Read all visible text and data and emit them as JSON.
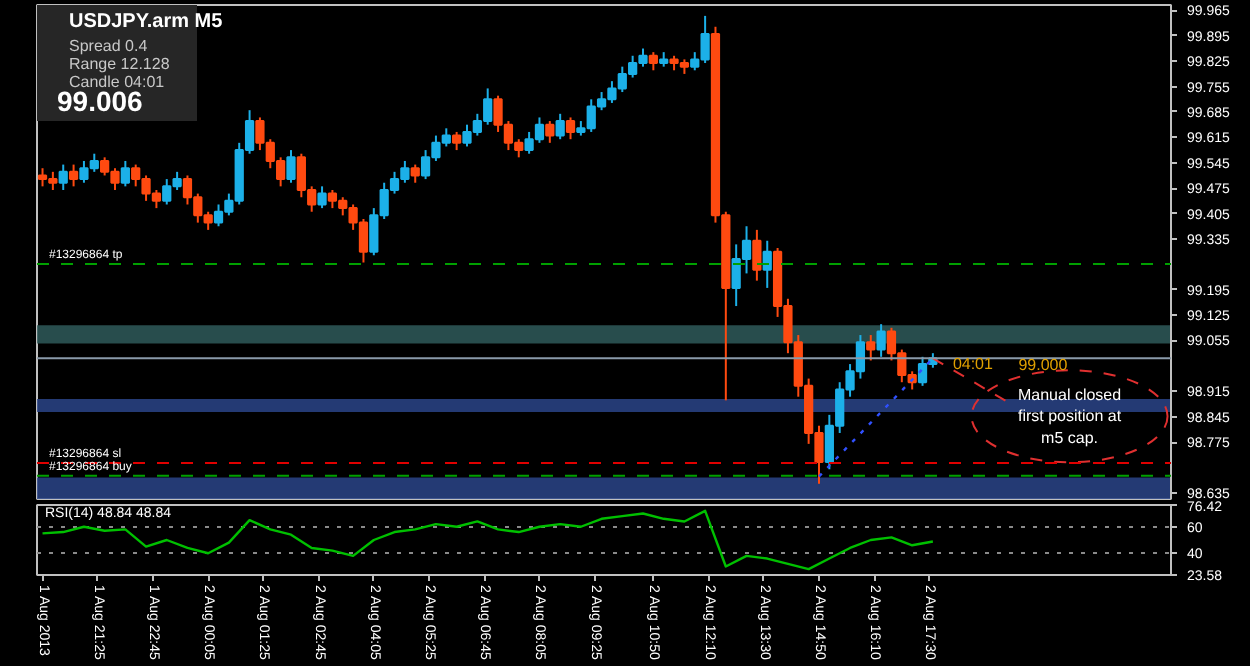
{
  "chart_data": [
    {
      "type": "candlestick",
      "title": "USDJPY.arm  M5",
      "annotations": [
        "Spread  0.4",
        "Range  12.128",
        "Candle  04:01",
        "99.006",
        {
          "text": "04:01",
          "x": "2013-08-02T17:35",
          "y": 98.99
        },
        {
          "text": "99.000",
          "x": "2013-08-02T19:10",
          "y": 98.99
        },
        {
          "text": "Manual closed first position at m5 cap.",
          "x": "2013-08-02T17:35",
          "y": 99.006
        }
      ],
      "x": [
        "2013-08-01T20:05",
        "2013-08-01T20:20",
        "2013-08-01T20:35",
        "2013-08-01T20:50",
        "2013-08-01T21:05",
        "2013-08-01T21:20",
        "2013-08-01T21:35",
        "2013-08-01T21:50",
        "2013-08-01T22:05",
        "2013-08-01T22:20",
        "2013-08-01T22:35",
        "2013-08-01T22:50",
        "2013-08-01T23:05",
        "2013-08-01T23:20",
        "2013-08-01T23:35",
        "2013-08-01T23:50",
        "2013-08-02T00:05",
        "2013-08-02T00:20",
        "2013-08-02T00:35",
        "2013-08-02T00:50",
        "2013-08-02T01:05",
        "2013-08-02T01:20",
        "2013-08-02T01:35",
        "2013-08-02T01:50",
        "2013-08-02T02:05",
        "2013-08-02T02:20",
        "2013-08-02T02:35",
        "2013-08-02T02:50",
        "2013-08-02T03:05",
        "2013-08-02T03:20",
        "2013-08-02T03:35",
        "2013-08-02T03:50",
        "2013-08-02T04:05",
        "2013-08-02T04:20",
        "2013-08-02T04:35",
        "2013-08-02T04:50",
        "2013-08-02T05:05",
        "2013-08-02T05:20",
        "2013-08-02T05:35",
        "2013-08-02T05:50",
        "2013-08-02T06:05",
        "2013-08-02T06:20",
        "2013-08-02T06:35",
        "2013-08-02T06:50",
        "2013-08-02T07:05",
        "2013-08-02T07:20",
        "2013-08-02T07:35",
        "2013-08-02T07:50",
        "2013-08-02T08:05",
        "2013-08-02T08:20",
        "2013-08-02T08:35",
        "2013-08-02T08:50",
        "2013-08-02T09:05",
        "2013-08-02T09:20",
        "2013-08-02T09:35",
        "2013-08-02T09:50",
        "2013-08-02T10:05",
        "2013-08-02T10:20",
        "2013-08-02T10:35",
        "2013-08-02T10:50",
        "2013-08-02T11:05",
        "2013-08-02T11:20",
        "2013-08-02T11:35",
        "2013-08-02T11:50",
        "2013-08-02T12:05",
        "2013-08-02T12:20",
        "2013-08-02T12:35",
        "2013-08-02T12:50",
        "2013-08-02T13:05",
        "2013-08-02T13:20",
        "2013-08-02T13:35",
        "2013-08-02T13:50",
        "2013-08-02T14:05",
        "2013-08-02T14:20",
        "2013-08-02T14:35",
        "2013-08-02T14:50",
        "2013-08-02T15:05",
        "2013-08-02T15:20",
        "2013-08-02T15:35",
        "2013-08-02T15:50",
        "2013-08-02T16:05",
        "2013-08-02T16:20",
        "2013-08-02T16:35",
        "2013-08-02T16:50",
        "2013-08-02T17:05",
        "2013-08-02T17:20",
        "2013-08-02T17:35"
      ],
      "ohlc": [
        [
          99.51,
          99.53,
          99.48,
          99.5
        ],
        [
          99.5,
          99.52,
          99.47,
          99.49
        ],
        [
          99.49,
          99.54,
          99.47,
          99.52
        ],
        [
          99.52,
          99.54,
          99.48,
          99.5
        ],
        [
          99.5,
          99.55,
          99.49,
          99.53
        ],
        [
          99.53,
          99.57,
          99.52,
          99.55
        ],
        [
          99.55,
          99.56,
          99.51,
          99.52
        ],
        [
          99.52,
          99.53,
          99.47,
          99.49
        ],
        [
          99.49,
          99.55,
          99.48,
          99.53
        ],
        [
          99.53,
          99.54,
          99.48,
          99.5
        ],
        [
          99.5,
          99.51,
          99.44,
          99.46
        ],
        [
          99.46,
          99.47,
          99.42,
          99.44
        ],
        [
          99.44,
          99.5,
          99.43,
          99.48
        ],
        [
          99.48,
          99.52,
          99.47,
          99.5
        ],
        [
          99.5,
          99.51,
          99.43,
          99.45
        ],
        [
          99.45,
          99.46,
          99.38,
          99.4
        ],
        [
          99.4,
          99.41,
          99.36,
          99.38
        ],
        [
          99.38,
          99.43,
          99.37,
          99.41
        ],
        [
          99.41,
          99.46,
          99.4,
          99.44
        ],
        [
          99.44,
          99.6,
          99.43,
          99.58
        ],
        [
          99.58,
          99.69,
          99.57,
          99.66
        ],
        [
          99.66,
          99.67,
          99.58,
          99.6
        ],
        [
          99.6,
          99.61,
          99.53,
          99.55
        ],
        [
          99.55,
          99.56,
          99.48,
          99.5
        ],
        [
          99.5,
          99.58,
          99.49,
          99.56
        ],
        [
          99.56,
          99.57,
          99.45,
          99.47
        ],
        [
          99.47,
          99.48,
          99.41,
          99.43
        ],
        [
          99.43,
          99.48,
          99.42,
          99.46
        ],
        [
          99.46,
          99.47,
          99.42,
          99.44
        ],
        [
          99.44,
          99.45,
          99.4,
          99.42
        ],
        [
          99.42,
          99.43,
          99.36,
          99.38
        ],
        [
          99.38,
          99.39,
          99.27,
          99.3
        ],
        [
          99.3,
          99.42,
          99.29,
          99.4
        ],
        [
          99.4,
          99.49,
          99.39,
          99.47
        ],
        [
          99.47,
          99.52,
          99.46,
          99.5
        ],
        [
          99.5,
          99.55,
          99.49,
          99.53
        ],
        [
          99.53,
          99.54,
          99.49,
          99.51
        ],
        [
          99.51,
          99.58,
          99.5,
          99.56
        ],
        [
          99.56,
          99.62,
          99.55,
          99.6
        ],
        [
          99.6,
          99.64,
          99.59,
          99.62
        ],
        [
          99.62,
          99.63,
          99.58,
          99.6
        ],
        [
          99.6,
          99.65,
          99.59,
          99.63
        ],
        [
          99.63,
          99.68,
          99.62,
          99.66
        ],
        [
          99.66,
          99.75,
          99.65,
          99.72
        ],
        [
          99.72,
          99.73,
          99.63,
          99.65
        ],
        [
          99.65,
          99.66,
          99.58,
          99.6
        ],
        [
          99.6,
          99.61,
          99.56,
          99.58
        ],
        [
          99.58,
          99.63,
          99.57,
          99.61
        ],
        [
          99.61,
          99.67,
          99.6,
          99.65
        ],
        [
          99.65,
          99.66,
          99.6,
          99.62
        ],
        [
          99.62,
          99.68,
          99.61,
          99.66
        ],
        [
          99.66,
          99.67,
          99.61,
          99.63
        ],
        [
          99.63,
          99.66,
          99.62,
          99.64
        ],
        [
          99.64,
          99.72,
          99.63,
          99.7
        ],
        [
          99.7,
          99.74,
          99.69,
          99.72
        ],
        [
          99.72,
          99.77,
          99.71,
          99.75
        ],
        [
          99.75,
          99.81,
          99.74,
          99.79
        ],
        [
          99.79,
          99.84,
          99.78,
          99.82
        ],
        [
          99.82,
          99.86,
          99.81,
          99.84
        ],
        [
          99.84,
          99.85,
          99.8,
          99.82
        ],
        [
          99.82,
          99.85,
          99.81,
          99.83
        ],
        [
          99.83,
          99.84,
          99.8,
          99.82
        ],
        [
          99.82,
          99.83,
          99.79,
          99.81
        ],
        [
          99.81,
          99.85,
          99.8,
          99.83
        ],
        [
          99.83,
          99.95,
          99.82,
          99.9
        ],
        [
          99.9,
          99.92,
          99.38,
          99.4
        ],
        [
          99.4,
          99.41,
          98.89,
          99.2
        ],
        [
          99.2,
          99.32,
          99.15,
          99.28
        ],
        [
          99.28,
          99.37,
          99.24,
          99.33
        ],
        [
          99.33,
          99.36,
          99.22,
          99.25
        ],
        [
          99.25,
          99.33,
          99.2,
          99.3
        ],
        [
          99.3,
          99.31,
          99.12,
          99.15
        ],
        [
          99.15,
          99.17,
          99.02,
          99.05
        ],
        [
          99.05,
          99.07,
          98.9,
          98.93
        ],
        [
          98.93,
          98.95,
          98.77,
          98.8
        ],
        [
          98.8,
          98.82,
          98.66,
          98.72
        ],
        [
          98.72,
          98.85,
          98.7,
          98.82
        ],
        [
          98.82,
          98.94,
          98.8,
          98.92
        ],
        [
          98.92,
          98.99,
          98.9,
          98.97
        ],
        [
          98.97,
          99.07,
          98.95,
          99.05
        ],
        [
          99.05,
          99.07,
          99.0,
          99.03
        ],
        [
          99.03,
          99.1,
          99.01,
          99.08
        ],
        [
          99.08,
          99.09,
          99.0,
          99.02
        ],
        [
          99.02,
          99.03,
          98.94,
          98.96
        ],
        [
          98.96,
          98.97,
          98.92,
          98.94
        ],
        [
          98.94,
          99.01,
          98.93,
          98.99
        ],
        [
          98.99,
          99.02,
          98.98,
          99.006
        ]
      ],
      "series": [
        {
          "type": "line",
          "color": "#3050ff",
          "line_style": "dotted",
          "x": [
            "2013-08-02T14:50",
            "2013-08-02T17:35"
          ],
          "values": [
            98.68,
            99.006
          ]
        }
      ],
      "ref_lines": [
        {
          "axis": "y",
          "value": 99.266,
          "label": "#13296864 tp",
          "color": "#00a000",
          "line_style": "dashed"
        },
        {
          "axis": "y",
          "value": 99.006,
          "label": null,
          "color": "#8a9aaa",
          "line_style": "solid"
        },
        {
          "axis": "y",
          "value": 98.717,
          "label": "#13296864 sl",
          "color": "#e00000",
          "line_style": "dashed"
        },
        {
          "axis": "y",
          "value": 98.682,
          "label": "#13296864 buy",
          "color": "#00a000",
          "line_style": "dashed"
        }
      ],
      "bands": [
        {
          "axis": "y",
          "from": 99.047,
          "to": 99.097,
          "color": "#2f5a5a"
        },
        {
          "axis": "y",
          "from": 98.858,
          "to": 98.894,
          "color": "#2a4488"
        },
        {
          "axis": "y",
          "from": 98.618,
          "to": 98.677,
          "color": "#2a4488"
        }
      ],
      "xlim": [
        "2013-08-01T19:57",
        "2013-08-02T23:20"
      ],
      "ylim": [
        98.618,
        99.98
      ],
      "yticks": [
        99.965,
        99.895,
        99.825,
        99.755,
        99.685,
        99.615,
        99.545,
        99.475,
        99.405,
        99.335,
        99.195,
        99.125,
        99.055,
        98.915,
        98.845,
        98.775,
        98.635
      ],
      "tick_labels": "y",
      "grid": false
    },
    {
      "type": "line",
      "title": "RSI(14) 48.84 48.84",
      "x": [
        "2013-08-01T20:05",
        "2013-08-01T20:35",
        "2013-08-01T21:05",
        "2013-08-01T21:35",
        "2013-08-01T22:05",
        "2013-08-01T22:35",
        "2013-08-01T23:05",
        "2013-08-01T23:35",
        "2013-08-02T00:05",
        "2013-08-02T00:35",
        "2013-08-02T01:05",
        "2013-08-02T01:35",
        "2013-08-02T02:05",
        "2013-08-02T02:35",
        "2013-08-02T03:05",
        "2013-08-02T03:35",
        "2013-08-02T04:05",
        "2013-08-02T04:35",
        "2013-08-02T05:05",
        "2013-08-02T05:35",
        "2013-08-02T06:05",
        "2013-08-02T06:35",
        "2013-08-02T07:05",
        "2013-08-02T07:35",
        "2013-08-02T08:05",
        "2013-08-02T08:35",
        "2013-08-02T09:05",
        "2013-08-02T09:35",
        "2013-08-02T10:05",
        "2013-08-02T10:35",
        "2013-08-02T11:05",
        "2013-08-02T11:35",
        "2013-08-02T12:05",
        "2013-08-02T12:35",
        "2013-08-02T13:05",
        "2013-08-02T13:35",
        "2013-08-02T14:05",
        "2013-08-02T14:35",
        "2013-08-02T15:05",
        "2013-08-02T15:35",
        "2013-08-02T16:05",
        "2013-08-02T16:35",
        "2013-08-02T17:05",
        "2013-08-02T17:35"
      ],
      "series": [
        {
          "color": "#00c000",
          "values": [
            55,
            56,
            60,
            57,
            58,
            45,
            50,
            44,
            40,
            48,
            65,
            58,
            54,
            44,
            42,
            38,
            50,
            56,
            58,
            62,
            60,
            64,
            58,
            56,
            60,
            62,
            60,
            66,
            68,
            70,
            66,
            64,
            72,
            30,
            38,
            36,
            32,
            28,
            36,
            44,
            50,
            52,
            46,
            48.84
          ]
        }
      ],
      "xlim": [
        "2013-08-01T19:57",
        "2013-08-02T23:20"
      ],
      "xticks": [
        {
          "value": "2013-08-01T20:05",
          "label": "1 Aug 2013"
        },
        {
          "value": "2013-08-01T21:25",
          "label": "1 Aug 21:25"
        },
        {
          "value": "2013-08-01T22:45",
          "label": "1 Aug 22:45"
        },
        {
          "value": "2013-08-02T00:05",
          "label": "2 Aug 00:05"
        },
        {
          "value": "2013-08-02T01:25",
          "label": "2 Aug 01:25"
        },
        {
          "value": "2013-08-02T02:45",
          "label": "2 Aug 02:45"
        },
        {
          "value": "2013-08-02T04:05",
          "label": "2 Aug 04:05"
        },
        {
          "value": "2013-08-02T05:25",
          "label": "2 Aug 05:25"
        },
        {
          "value": "2013-08-02T06:45",
          "label": "2 Aug 06:45"
        },
        {
          "value": "2013-08-02T08:05",
          "label": "2 Aug 08:05"
        },
        {
          "value": "2013-08-02T09:25",
          "label": "2 Aug 09:25"
        },
        {
          "value": "2013-08-02T10:50",
          "label": "2 Aug 10:50"
        },
        {
          "value": "2013-08-02T12:10",
          "label": "2 Aug 12:10"
        },
        {
          "value": "2013-08-02T13:30",
          "label": "2 Aug 13:30"
        },
        {
          "value": "2013-08-02T14:50",
          "label": "2 Aug 14:50"
        },
        {
          "value": "2013-08-02T16:10",
          "label": "2 Aug 16:10"
        },
        {
          "value": "2013-08-02T17:30",
          "label": "2 Aug 17:30"
        }
      ],
      "ylim": [
        23.58,
        76.42
      ],
      "yticks": [
        76.42,
        60,
        40,
        23.58
      ],
      "grid": "y",
      "marker": "none"
    }
  ]
}
